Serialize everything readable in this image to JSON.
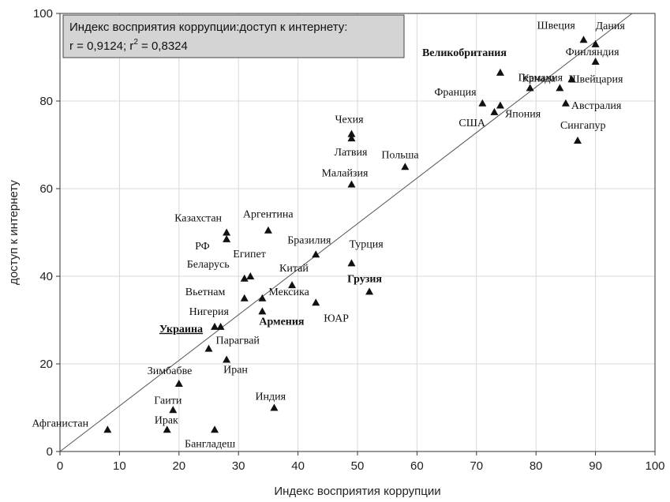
{
  "chart_data": {
    "type": "scatter",
    "legend": {
      "line1": "Индекс восприятия коррупции:доступ к интернету:",
      "line2_r": "r = 0,9124; r",
      "line2_sup": "2",
      "line2_rest": " = 0,8324",
      "placement": "top-left"
    },
    "xlabel": "Индекс восприятия коррупции",
    "ylabel": "доступ к интернету",
    "xlim": [
      0,
      100
    ],
    "ylim": [
      0,
      100
    ],
    "xticks": [
      "0",
      "10",
      "20",
      "30",
      "40",
      "50",
      "60",
      "70",
      "80",
      "90",
      "100"
    ],
    "yticks": [
      "0",
      "20",
      "40",
      "60",
      "80",
      "100"
    ],
    "grid": true,
    "marker": "triangle",
    "regression_line": {
      "x": [
        0,
        100
      ],
      "y": [
        0,
        104
      ]
    },
    "points": [
      {
        "name": "Афганистан",
        "x": 8,
        "y": 5
      },
      {
        "name": "Ирак",
        "x": 18,
        "y": 5
      },
      {
        "name": "Гаити",
        "x": 19,
        "y": 9.5
      },
      {
        "name": "Бангладеш",
        "x": 26,
        "y": 5
      },
      {
        "name": "Индия",
        "x": 36,
        "y": 10
      },
      {
        "name": "Зимбабве",
        "x": 20,
        "y": 15.5
      },
      {
        "name": "Иран",
        "x": 28,
        "y": 21
      },
      {
        "name": "Парагвай",
        "x": 25,
        "y": 23.5
      },
      {
        "name": "Украина",
        "x": 26,
        "y": 28.5,
        "style": "bold-underline"
      },
      {
        "name": "Нигерия",
        "x": 27,
        "y": 28.5
      },
      {
        "name": "Армения",
        "x": 34,
        "y": 32,
        "style": "bold"
      },
      {
        "name": "Вьетнам",
        "x": 31,
        "y": 35
      },
      {
        "name": "Мексика",
        "x": 34,
        "y": 35
      },
      {
        "name": "ЮАР",
        "x": 43,
        "y": 34
      },
      {
        "name": "Китай",
        "x": 39,
        "y": 38
      },
      {
        "name": "Беларусь",
        "x": 31,
        "y": 39.5
      },
      {
        "name": "Египет",
        "x": 32,
        "y": 40
      },
      {
        "name": "Грузия",
        "x": 52,
        "y": 36.5,
        "style": "bold"
      },
      {
        "name": "Турция",
        "x": 49,
        "y": 43
      },
      {
        "name": "Бразилия",
        "x": 43,
        "y": 45
      },
      {
        "name": "РФ",
        "x": 28,
        "y": 48.5
      },
      {
        "name": "Казахстан",
        "x": 28,
        "y": 50
      },
      {
        "name": "Аргентина",
        "x": 35,
        "y": 50.5
      },
      {
        "name": "Малайзия",
        "x": 49,
        "y": 61
      },
      {
        "name": "Польша",
        "x": 58,
        "y": 65
      },
      {
        "name": "Латвия",
        "x": 49,
        "y": 71.5
      },
      {
        "name": "Чехия",
        "x": 49,
        "y": 72.5
      },
      {
        "name": "США",
        "x": 73,
        "y": 77.5
      },
      {
        "name": "Франция",
        "x": 71,
        "y": 79.5
      },
      {
        "name": "Япония",
        "x": 74,
        "y": 79
      },
      {
        "name": "Германия",
        "x": 79,
        "y": 83
      },
      {
        "name": "Великобритания",
        "x": 74,
        "y": 86.5,
        "style": "bold"
      },
      {
        "name": "Канада",
        "x": 84,
        "y": 83
      },
      {
        "name": "Австралия",
        "x": 85,
        "y": 79.5
      },
      {
        "name": "Швейцария",
        "x": 86,
        "y": 85
      },
      {
        "name": "Сингапур",
        "x": 87,
        "y": 71
      },
      {
        "name": "Швеция",
        "x": 88,
        "y": 94
      },
      {
        "name": "Дания",
        "x": 90,
        "y": 93
      },
      {
        "name": "Финляндия",
        "x": 90,
        "y": 89
      }
    ]
  }
}
